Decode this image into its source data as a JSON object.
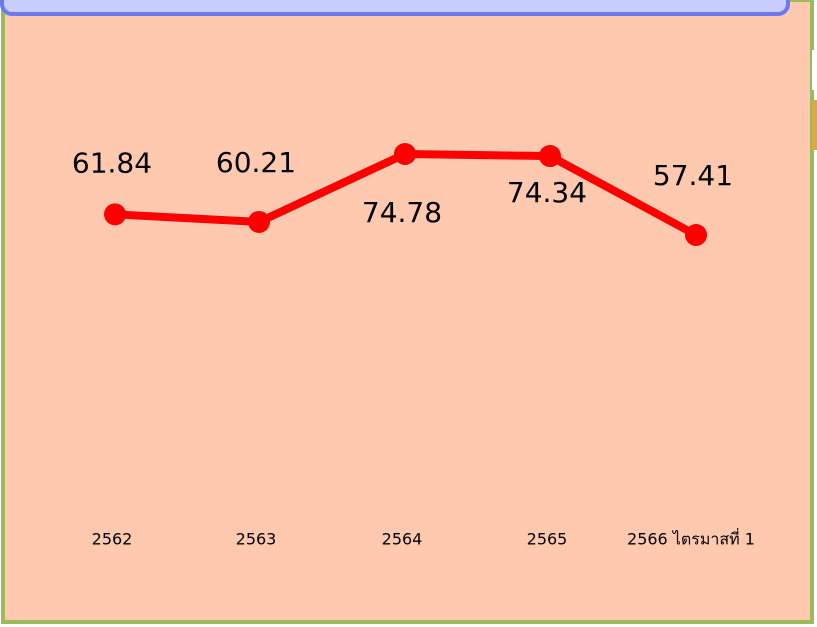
{
  "chart_data": {
    "type": "line",
    "categories": [
      "2562",
      "2563",
      "2564",
      "2565",
      "2566 ไตรมาสที่ 1"
    ],
    "series": [
      {
        "color": "#ff0000",
        "values": [
          61.84,
          60.21,
          74.78,
          74.34,
          57.41
        ]
      }
    ]
  }
}
